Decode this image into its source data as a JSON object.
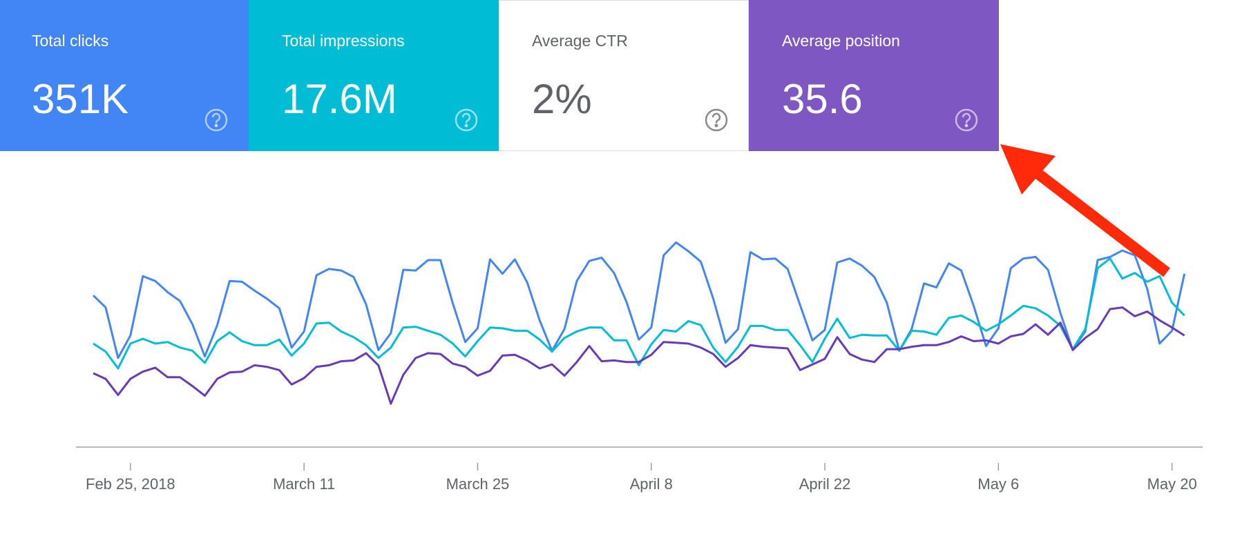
{
  "cards": [
    {
      "label": "Total clicks",
      "value": "351K"
    },
    {
      "label": "Total impressions",
      "value": "17.6M"
    },
    {
      "label": "Average CTR",
      "value": "2%"
    },
    {
      "label": "Average position",
      "value": "35.6"
    }
  ],
  "chart_data": {
    "type": "line",
    "categories": [
      null,
      null,
      null,
      "Feb 25, 2018",
      null,
      null,
      null,
      null,
      null,
      null,
      null,
      null,
      null,
      null,
      null,
      null,
      null,
      "March 11",
      null,
      null,
      null,
      null,
      null,
      null,
      null,
      null,
      null,
      null,
      null,
      null,
      null,
      "March 25",
      null,
      null,
      null,
      null,
      null,
      null,
      null,
      null,
      null,
      null,
      null,
      null,
      null,
      "April 8",
      null,
      null,
      null,
      null,
      null,
      null,
      null,
      null,
      null,
      null,
      null,
      null,
      null,
      "April 22",
      null,
      null,
      null,
      null,
      null,
      null,
      null,
      null,
      null,
      null,
      null,
      null,
      null,
      "May 6",
      null,
      null,
      null,
      null,
      null,
      null,
      null,
      null,
      null,
      null,
      null,
      null,
      null,
      "May 20",
      null
    ],
    "ylim": [
      0,
      270
    ],
    "series": [
      {
        "color": "#4285f4",
        "values": [
          189,
          174,
          111,
          139,
          213,
          207,
          193,
          182,
          153,
          113,
          152,
          207,
          206,
          195,
          185,
          173,
          124,
          144,
          214,
          222,
          220,
          212,
          178,
          121,
          142,
          221,
          220,
          233,
          233,
          179,
          131,
          148,
          234,
          216,
          234,
          205,
          158,
          120,
          147,
          207,
          232,
          236,
          217,
          181,
          134,
          149,
          239,
          255,
          244,
          231,
          185,
          130,
          147,
          243,
          234,
          235,
          222,
          177,
          133,
          146,
          230,
          235,
          226,
          212,
          180,
          120,
          147,
          204,
          199,
          229,
          220,
          176,
          126,
          148,
          223,
          235,
          237,
          221,
          167,
          121,
          144,
          233,
          237,
          245,
          239,
          197,
          129,
          145,
          216
        ]
      },
      {
        "color": "#00bcd4",
        "values": [
          129,
          119,
          98,
          129,
          135,
          129,
          131,
          124,
          120,
          105,
          132,
          143,
          132,
          127,
          127,
          134,
          114,
          129,
          154,
          155,
          144,
          137,
          127,
          111,
          124,
          149,
          150,
          145,
          140,
          129,
          113,
          132,
          149,
          148,
          145,
          145,
          134,
          119,
          136,
          144,
          149,
          149,
          133,
          133,
          102,
          128,
          146,
          144,
          157,
          152,
          124,
          106,
          125,
          151,
          151,
          146,
          146,
          127,
          106,
          135,
          160,
          136,
          140,
          139,
          139,
          120,
          145,
          144,
          140,
          161,
          164,
          156,
          145,
          153,
          164,
          176,
          173,
          164,
          151,
          122,
          147,
          223,
          235,
          210,
          217,
          206,
          213,
          180,
          164
        ]
      },
      {
        "color": "#673ab7",
        "values": [
          92,
          85,
          65,
          85,
          94,
          99,
          87,
          87,
          76,
          64,
          85,
          93,
          94,
          102,
          100,
          96,
          78,
          86,
          100,
          102,
          107,
          108,
          117,
          102,
          54,
          90,
          111,
          117,
          116,
          104,
          100,
          89,
          95,
          114,
          115,
          108,
          98,
          103,
          89,
          106,
          126,
          107,
          108,
          106,
          106,
          115,
          131,
          130,
          129,
          124,
          116,
          100,
          111,
          127,
          125,
          124,
          123,
          96,
          103,
          110,
          137,
          116,
          109,
          106,
          122,
          122,
          125,
          127,
          127,
          131,
          138,
          132,
          133,
          129,
          138,
          141,
          153,
          140,
          155,
          121,
          136,
          147,
          172,
          174,
          163,
          169,
          158,
          149,
          139
        ]
      }
    ]
  }
}
